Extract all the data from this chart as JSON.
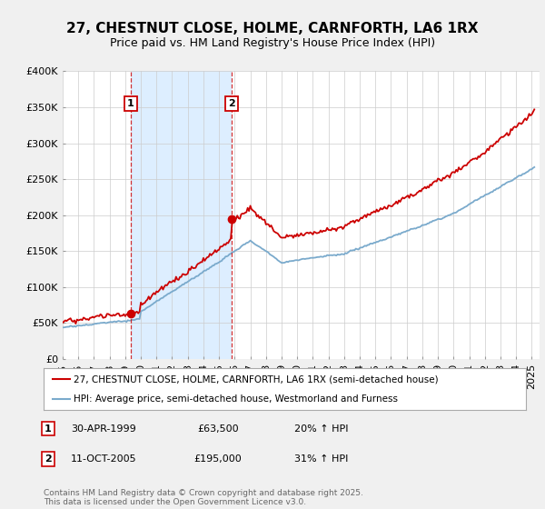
{
  "title": "27, CHESTNUT CLOSE, HOLME, CARNFORTH, LA6 1RX",
  "subtitle": "Price paid vs. HM Land Registry's House Price Index (HPI)",
  "ylim": [
    0,
    400000
  ],
  "yticks": [
    0,
    50000,
    100000,
    150000,
    200000,
    250000,
    300000,
    350000,
    400000
  ],
  "ytick_labels": [
    "£0",
    "£50K",
    "£100K",
    "£150K",
    "£200K",
    "£250K",
    "£300K",
    "£350K",
    "£400K"
  ],
  "xlim_start": 1995.0,
  "xlim_end": 2025.5,
  "background_color": "#f0f0f0",
  "plot_background": "#ffffff",
  "grid_color": "#cccccc",
  "red_color": "#cc0000",
  "blue_color": "#7aaacc",
  "fill_color": "#ddeeff",
  "purchase1_year": 1999.33,
  "purchase1_price": 63500,
  "purchase2_year": 2005.78,
  "purchase2_price": 195000,
  "legend_line1": "27, CHESTNUT CLOSE, HOLME, CARNFORTH, LA6 1RX (semi-detached house)",
  "legend_line2": "HPI: Average price, semi-detached house, Westmorland and Furness",
  "table_row1": [
    "1",
    "30-APR-1999",
    "£63,500",
    "20% ↑ HPI"
  ],
  "table_row2": [
    "2",
    "11-OCT-2005",
    "£195,000",
    "31% ↑ HPI"
  ],
  "footnote": "Contains HM Land Registry data © Crown copyright and database right 2025.\nThis data is licensed under the Open Government Licence v3.0.",
  "title_fontsize": 11,
  "subtitle_fontsize": 9,
  "tick_fontsize": 8
}
